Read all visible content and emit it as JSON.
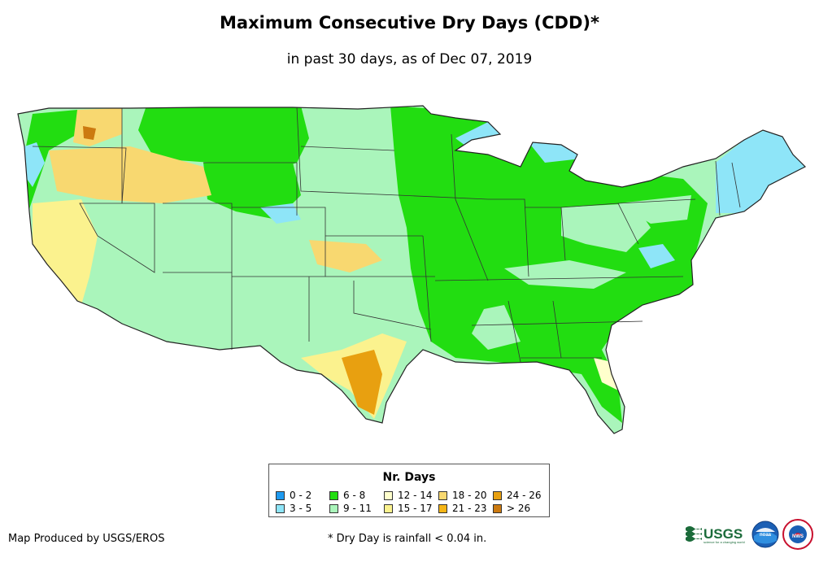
{
  "title": "Maximum Consecutive Dry Days (CDD)*",
  "subtitle": "in past 30 days, as of Dec 07, 2019",
  "legend": {
    "title": "Nr. Days",
    "items": [
      {
        "label": "0 - 2",
        "color": "#1e9af0"
      },
      {
        "label": "3 - 5",
        "color": "#8ee5f8"
      },
      {
        "label": "6 - 8",
        "color": "#22dd11"
      },
      {
        "label": "9 - 11",
        "color": "#aaf5bb"
      },
      {
        "label": "12 - 14",
        "color": "#ffffcc"
      },
      {
        "label": "15 - 17",
        "color": "#fbf28e"
      },
      {
        "label": "18 - 20",
        "color": "#f8d870"
      },
      {
        "label": "21 - 23",
        "color": "#f5b516"
      },
      {
        "label": "24 - 26",
        "color": "#e8a010"
      },
      {
        "label": "> 26",
        "color": "#cc7a10"
      }
    ]
  },
  "footer": {
    "producer": "Map Produced by USGS/EROS",
    "note": "* Dry Day is rainfall < 0.04 in."
  },
  "logos": {
    "usgs": "USGS",
    "usgs_tagline": "science for a changing world",
    "noaa": "noaa",
    "nws": "NWS"
  }
}
